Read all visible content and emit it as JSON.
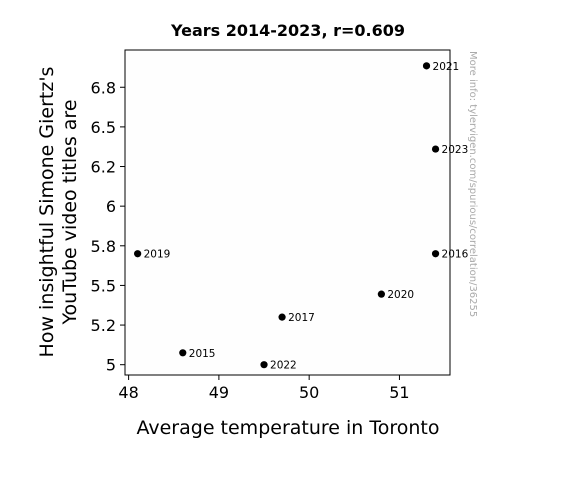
{
  "chart_data": {
    "type": "scatter",
    "title": "Years 2014-2023, r=0.609",
    "xlabel": "Average temperature in Toronto",
    "ylabel_lines": [
      "How insightful Simone Giertz's",
      "YouTube video titles are"
    ],
    "xlim": [
      47.96,
      51.56
    ],
    "ylim": [
      4.935,
      6.985
    ],
    "x_ticks": [
      48,
      49,
      50,
      51
    ],
    "y_ticks": [
      5,
      5.25,
      5.5,
      5.75,
      6,
      6.25,
      6.5,
      6.75
    ],
    "y_tick_labels": [
      "5",
      "5.2",
      "5.5",
      "5.8",
      "6",
      "6.2",
      "6.5",
      "6.8"
    ],
    "points": [
      {
        "x": 48.6,
        "y": 5.075,
        "label": "2015"
      },
      {
        "x": 51.4,
        "y": 5.7,
        "label": "2016"
      },
      {
        "x": 49.7,
        "y": 5.3,
        "label": "2017"
      },
      {
        "x": 48.1,
        "y": 5.7,
        "label": "2019"
      },
      {
        "x": 50.8,
        "y": 5.445,
        "label": "2020"
      },
      {
        "x": 51.3,
        "y": 6.885,
        "label": "2021"
      },
      {
        "x": 49.5,
        "y": 5.0,
        "label": "2022"
      },
      {
        "x": 51.4,
        "y": 6.36,
        "label": "2023"
      }
    ],
    "marker_color": "#000000",
    "grid": false,
    "watermark": "More info: tylervigen.com/spurious/correlation/36255"
  }
}
